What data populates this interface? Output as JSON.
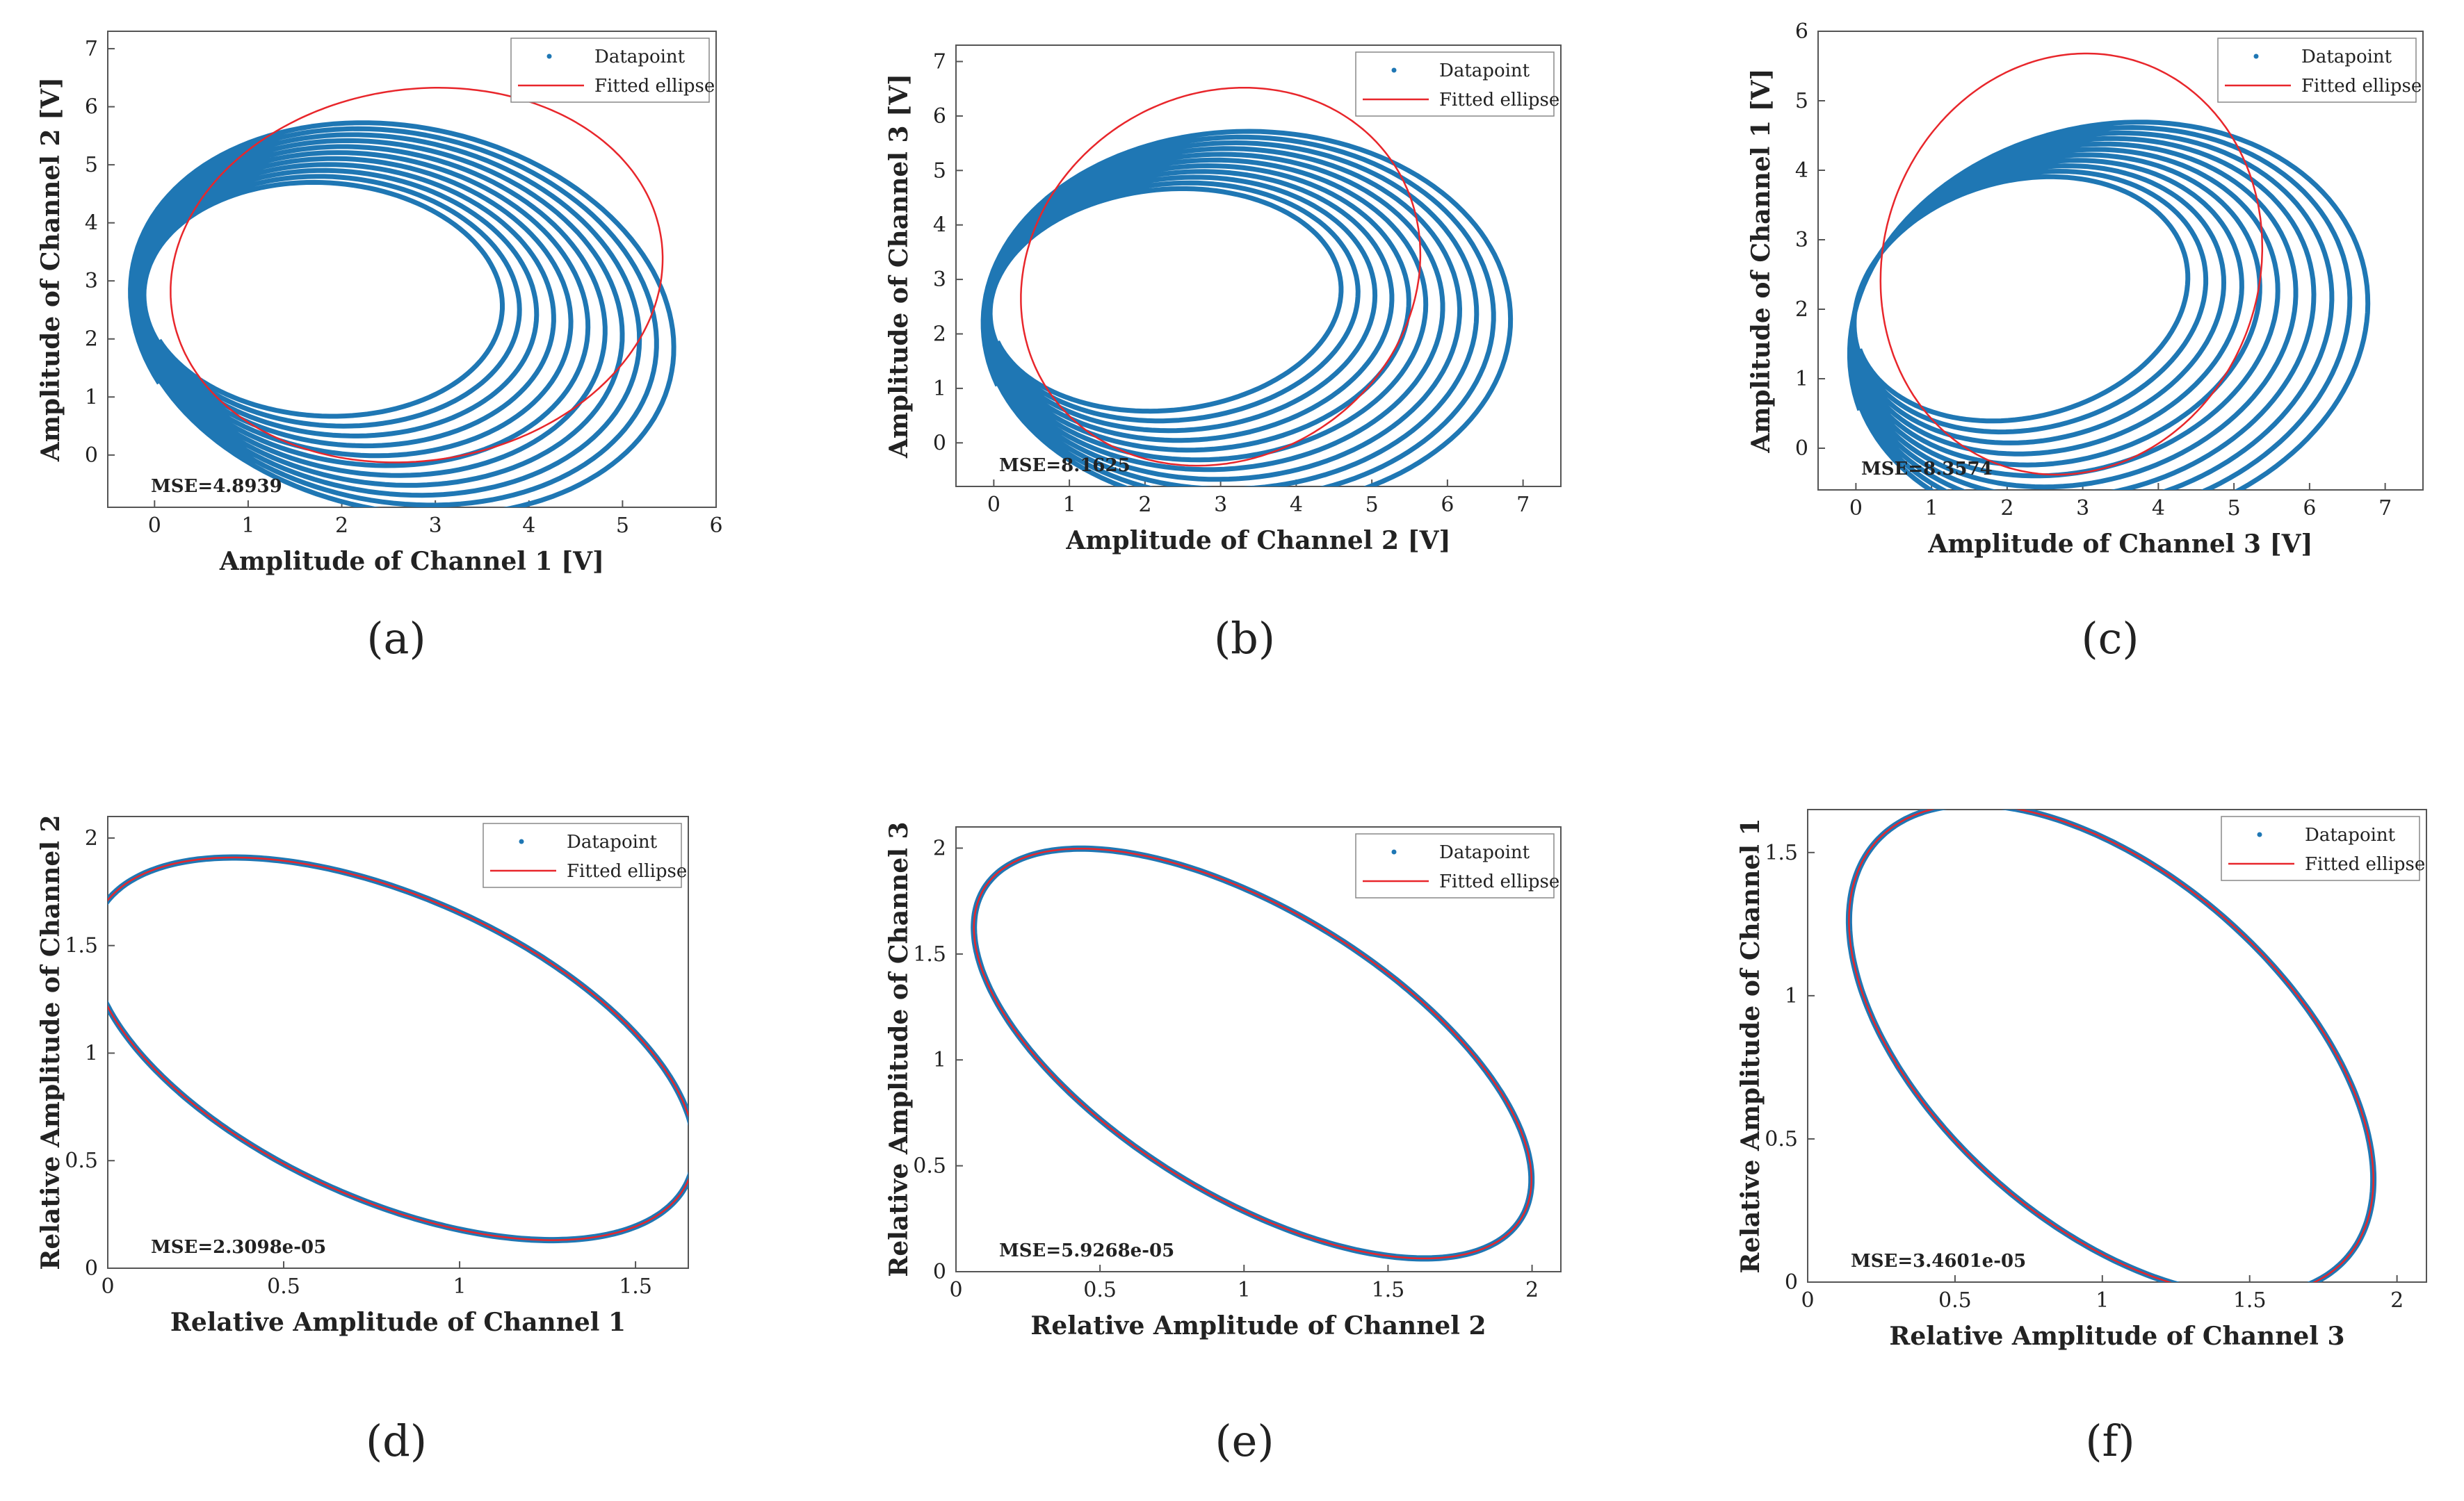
{
  "colors": {
    "datapoint": "#1f77b4",
    "fitted": "#e8262b",
    "axis": "#555555"
  },
  "chart_data": [
    {
      "type": "scatter",
      "panel_label": "(a)",
      "xlabel": "Amplitude of Channel 1 [V]",
      "ylabel": "Amplitude of Channel 2 [V]",
      "xlim": [
        -0.5,
        6
      ],
      "ylim": [
        -0.9,
        7.3
      ],
      "xticks": [
        0,
        1,
        2,
        3,
        4,
        5,
        6
      ],
      "yticks": [
        0,
        1,
        2,
        3,
        4,
        5,
        6,
        7
      ],
      "legend": [
        "Datapoint",
        "Fitted ellipse"
      ],
      "legend_position": "top-right",
      "mse_text": "MSE=4.8939",
      "spiral": {
        "x0": 0.05,
        "y0": 3.35,
        "loops": 11,
        "rx_range": [
          1.85,
          2.85
        ],
        "ry_range": [
          1.98,
          3.55
        ],
        "a": 0.38
      },
      "ellipse": {
        "cx": 2.8,
        "cy": 3.1,
        "rx": 2.6,
        "ry": 3.25,
        "a": -0.2
      }
    },
    {
      "type": "scatter",
      "panel_label": "(b)",
      "xlabel": "Amplitude of Channel 2 [V]",
      "ylabel": "Amplitude of Channel 3 [V]",
      "xlim": [
        -0.5,
        7.5
      ],
      "ylim": [
        -0.8,
        7.3
      ],
      "xticks": [
        0,
        1,
        2,
        3,
        4,
        5,
        6,
        7
      ],
      "yticks": [
        0,
        1,
        2,
        3,
        4,
        5,
        6,
        7
      ],
      "legend": [
        "Datapoint",
        "Fitted ellipse"
      ],
      "legend_position": "top-right",
      "mse_text": "MSE=8.1625",
      "spiral": {
        "x0": 0.05,
        "y0": 3.35,
        "loops": 11,
        "rx_range": [
          2.3,
          3.55
        ],
        "ry_range": [
          1.95,
          3.55
        ],
        "a": 0.33
      },
      "ellipse": {
        "cx": 3.0,
        "cy": 3.05,
        "rx": 2.6,
        "ry": 3.5,
        "a": -0.2
      }
    },
    {
      "type": "scatter",
      "panel_label": "(c)",
      "xlabel": "Amplitude of Channel 3 [V]",
      "ylabel": "Amplitude of Channel 1 [V]",
      "xlim": [
        -0.5,
        7.5
      ],
      "ylim": [
        -0.6,
        6
      ],
      "xticks": [
        0,
        1,
        2,
        3,
        4,
        5,
        6,
        7
      ],
      "yticks": [
        0,
        1,
        2,
        3,
        4,
        5,
        6
      ],
      "legend": [
        "Datapoint",
        "Fitted ellipse"
      ],
      "legend_position": "top-right",
      "mse_text": "MSE=8.3574",
      "spiral": {
        "x0": 0.05,
        "y0": 2.85,
        "loops": 11,
        "rx_range": [
          2.2,
          3.55
        ],
        "ry_range": [
          1.65,
          2.95
        ],
        "a": 0.33
      },
      "ellipse": {
        "cx": 2.85,
        "cy": 2.65,
        "rx": 2.5,
        "ry": 3.05,
        "a": -0.2
      }
    },
    {
      "type": "scatter",
      "panel_label": "(d)",
      "xlabel": "Relative Amplitude of Channel 1",
      "ylabel": "Relative Amplitude of Channel 2",
      "xlim": [
        0,
        1.65
      ],
      "ylim": [
        0,
        2.1
      ],
      "xticks": [
        0,
        0.5,
        1,
        1.5
      ],
      "yticks": [
        0,
        0.5,
        1,
        1.5,
        2
      ],
      "legend": [
        "Datapoint",
        "Fitted ellipse"
      ],
      "legend_position": "top-right",
      "mse_text": "MSE=2.3098e-05",
      "ellipse": {
        "cx": 0.81,
        "cy": 1.02,
        "rx": 1.08,
        "ry": 0.6,
        "a": -0.82
      }
    },
    {
      "type": "scatter",
      "panel_label": "(e)",
      "xlabel": "Relative Amplitude of Channel 2",
      "ylabel": "Relative Amplitude of Channel 3",
      "xlim": [
        0,
        2.1
      ],
      "ylim": [
        0,
        2.1
      ],
      "xticks": [
        0,
        0.5,
        1,
        1.5,
        2
      ],
      "yticks": [
        0,
        0.5,
        1,
        1.5,
        2
      ],
      "legend": [
        "Datapoint",
        "Fitted ellipse"
      ],
      "legend_position": "top-right",
      "mse_text": "MSE=5.9268e-05",
      "ellipse": {
        "cx": 1.03,
        "cy": 1.03,
        "rx": 1.23,
        "ry": 0.6,
        "a": -0.785
      }
    },
    {
      "type": "scatter",
      "panel_label": "(f)",
      "xlabel": "Relative Amplitude of Channel 3",
      "ylabel": "Relative Amplitude of Channel 1",
      "xlim": [
        0,
        2.1
      ],
      "ylim": [
        0,
        1.65
      ],
      "xticks": [
        0,
        0.5,
        1,
        1.5,
        2
      ],
      "yticks": [
        0,
        0.5,
        1,
        1.5
      ],
      "legend": [
        "Datapoint",
        "Fitted ellipse"
      ],
      "legend_position": "top-right",
      "mse_text": "MSE=3.4601e-05",
      "ellipse": {
        "cx": 1.03,
        "cy": 0.81,
        "rx": 1.08,
        "ry": 0.6,
        "a": -0.75
      }
    }
  ]
}
